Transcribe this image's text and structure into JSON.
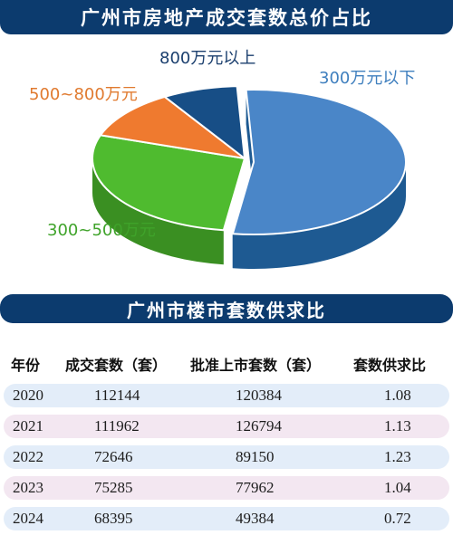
{
  "chart_data": [
    {
      "type": "pie",
      "title": "广州市房地产成交套数总价占比",
      "labels": [
        "300万元以下",
        "300~500万元",
        "500~800万元",
        "800万元以上"
      ],
      "values": [
        53,
        28,
        11,
        8
      ],
      "colors": [
        "#4a86c8",
        "#4fbb2f",
        "#ef7a2f",
        "#174e86"
      ],
      "side_colors": [
        "#1e5a92",
        "#3a8f22",
        "#b85a1f",
        "#0e355e"
      ],
      "label_colors": [
        "#3f7fbe",
        "#3fa32a",
        "#e07a2f",
        "#1b3f6e"
      ]
    },
    {
      "type": "table",
      "title": "广州市楼市套数供求比",
      "columns": [
        "年份",
        "成交套数（套）",
        "批准上市套数（套）",
        "套数供求比"
      ],
      "rows": [
        [
          "2020",
          "112144",
          "120384",
          "1.08"
        ],
        [
          "2021",
          "111962",
          "126794",
          "1.13"
        ],
        [
          "2022",
          "72646",
          "89150",
          "1.23"
        ],
        [
          "2023",
          "75285",
          "77962",
          "1.04"
        ],
        [
          "2024",
          "68395",
          "49384",
          "0.72"
        ]
      ],
      "row_colors": [
        "#e3edf9",
        "#f3e7f1"
      ]
    }
  ]
}
